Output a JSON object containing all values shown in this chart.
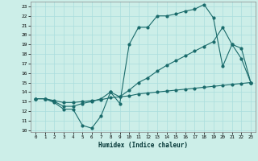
{
  "xlabel": "Humidex (Indice chaleur)",
  "bg_color": "#cceee8",
  "line_color": "#1a6b6b",
  "grid_color": "#aadddd",
  "xlim": [
    -0.5,
    23.5
  ],
  "ylim": [
    9.8,
    23.5
  ],
  "xticks": [
    0,
    1,
    2,
    3,
    4,
    5,
    6,
    7,
    8,
    9,
    10,
    11,
    12,
    13,
    14,
    15,
    16,
    17,
    18,
    19,
    20,
    21,
    22,
    23
  ],
  "yticks": [
    10,
    11,
    12,
    13,
    14,
    15,
    16,
    17,
    18,
    19,
    20,
    21,
    22,
    23
  ],
  "line1_x": [
    0,
    1,
    2,
    3,
    4,
    5,
    6,
    7,
    8,
    9,
    10,
    11,
    12,
    13,
    14,
    15,
    16,
    17,
    18,
    19,
    20,
    21,
    22,
    23
  ],
  "line1_y": [
    13.3,
    13.3,
    12.9,
    12.2,
    12.2,
    10.5,
    10.2,
    11.5,
    14.0,
    12.8,
    19.0,
    20.8,
    20.8,
    22.0,
    22.0,
    22.2,
    22.5,
    22.7,
    23.2,
    21.8,
    16.7,
    19.0,
    18.6,
    15.0
  ],
  "line2_x": [
    0,
    1,
    2,
    3,
    4,
    5,
    6,
    7,
    8,
    9,
    10,
    11,
    12,
    13,
    14,
    15,
    16,
    17,
    18,
    19,
    20,
    21,
    22,
    23
  ],
  "line2_y": [
    13.3,
    13.3,
    13.0,
    12.5,
    12.5,
    12.8,
    13.0,
    13.3,
    14.0,
    13.5,
    14.2,
    15.0,
    15.5,
    16.2,
    16.8,
    17.3,
    17.8,
    18.3,
    18.8,
    19.3,
    20.8,
    19.0,
    17.5,
    15.0
  ],
  "line3_x": [
    0,
    1,
    2,
    3,
    4,
    5,
    6,
    7,
    8,
    9,
    10,
    11,
    12,
    13,
    14,
    15,
    16,
    17,
    18,
    19,
    20,
    21,
    22,
    23
  ],
  "line3_y": [
    13.3,
    13.3,
    13.1,
    12.9,
    12.9,
    13.0,
    13.1,
    13.2,
    13.4,
    13.5,
    13.6,
    13.8,
    13.9,
    14.0,
    14.1,
    14.2,
    14.3,
    14.4,
    14.5,
    14.6,
    14.7,
    14.8,
    14.9,
    15.0
  ]
}
